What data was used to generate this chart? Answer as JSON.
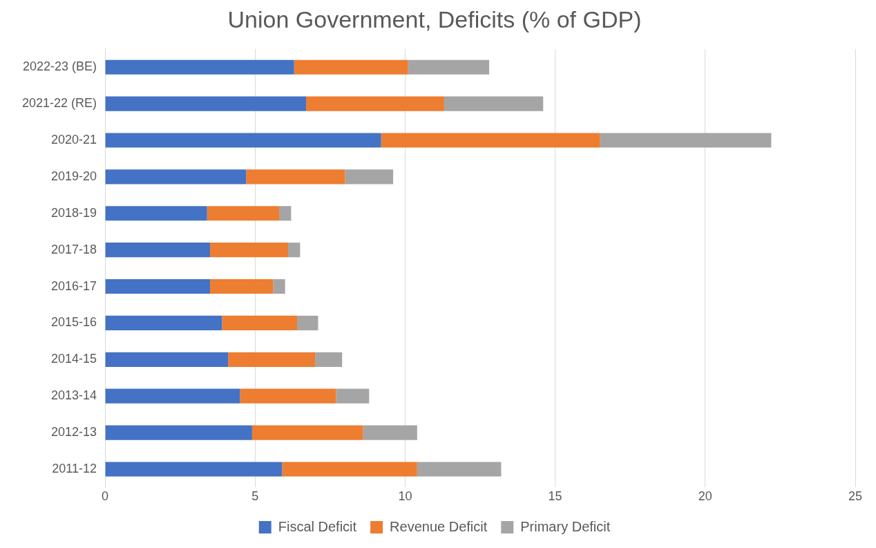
{
  "chart_data": {
    "type": "bar",
    "orientation": "horizontal",
    "stacked": true,
    "title": "Union Government, Deficits (% of GDP)",
    "categories": [
      "2022-23 (BE)",
      "2021-22 (RE)",
      "2020-21",
      "2019-20",
      "2018-19",
      "2017-18",
      "2016-17",
      "2015-16",
      "2014-15",
      "2013-14",
      "2012-13",
      "2011-12"
    ],
    "series": [
      {
        "name": "Fiscal Deficit",
        "color": "#4472c4",
        "values": [
          6.3,
          6.7,
          9.2,
          4.7,
          3.4,
          3.5,
          3.5,
          3.9,
          4.1,
          4.5,
          4.9,
          5.9
        ]
      },
      {
        "name": "Revenue Deficit",
        "color": "#ed7d31",
        "values": [
          3.8,
          4.6,
          7.3,
          3.3,
          2.4,
          2.6,
          2.1,
          2.5,
          2.9,
          3.2,
          3.7,
          4.5
        ]
      },
      {
        "name": "Primary Deficit",
        "color": "#a5a5a5",
        "values": [
          2.7,
          3.3,
          5.7,
          1.6,
          0.4,
          0.4,
          0.4,
          0.7,
          0.9,
          1.1,
          1.8,
          2.8
        ]
      }
    ],
    "xlim": [
      0,
      25
    ],
    "xticks": [
      0,
      5,
      10,
      15,
      20,
      25
    ],
    "grid": "x",
    "legend": "bottom"
  }
}
